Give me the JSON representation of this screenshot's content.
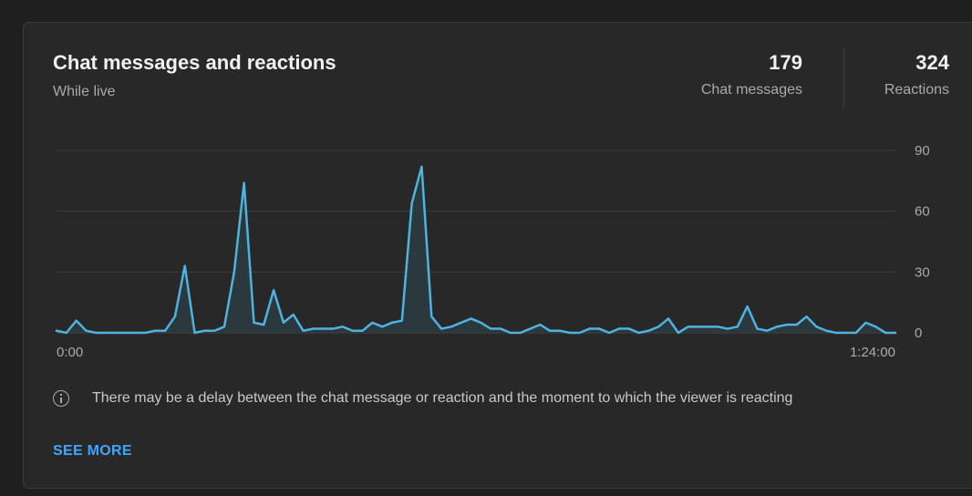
{
  "card": {
    "title": "Chat messages and reactions",
    "subtitle": "While live"
  },
  "metrics": {
    "chat": {
      "value": "179",
      "label": "Chat messages"
    },
    "reactions": {
      "value": "324",
      "label": "Reactions"
    }
  },
  "notice": {
    "icon": "info-icon",
    "text": "There may be a delay between the chat message or reaction and the moment to which the viewer is reacting"
  },
  "actions": {
    "see_more": "SEE MORE"
  },
  "colors": {
    "line": "#4fb3e0",
    "fill": "#2b3a40",
    "grid": "#3d3d3d",
    "link": "#3ea6ff"
  },
  "chart_data": {
    "type": "area",
    "grid": true,
    "ylim": [
      0,
      90
    ],
    "y_ticks": [
      "90",
      "60",
      "30",
      "0"
    ],
    "x_tick_labels": [
      "0:00",
      "1:24:00"
    ],
    "xlim_minutes": [
      0,
      84
    ],
    "series": [
      {
        "values": [
          1,
          0,
          6,
          1,
          0,
          0,
          0,
          0,
          0,
          0,
          1,
          1,
          8,
          33,
          0,
          1,
          1,
          3,
          30,
          74,
          5,
          4,
          21,
          5,
          9,
          1,
          2,
          2,
          2,
          3,
          1,
          1,
          5,
          3,
          5,
          6,
          64,
          82,
          8,
          2,
          3,
          5,
          7,
          5,
          2,
          2,
          0,
          0,
          2,
          4,
          1,
          1,
          0,
          0,
          2,
          2,
          0,
          2,
          2,
          0,
          1,
          3,
          7,
          0,
          3,
          3,
          3,
          3,
          2,
          3,
          13,
          2,
          1,
          3,
          4,
          4,
          8,
          3,
          1,
          0,
          0,
          0,
          5,
          3,
          0,
          0
        ]
      }
    ]
  }
}
